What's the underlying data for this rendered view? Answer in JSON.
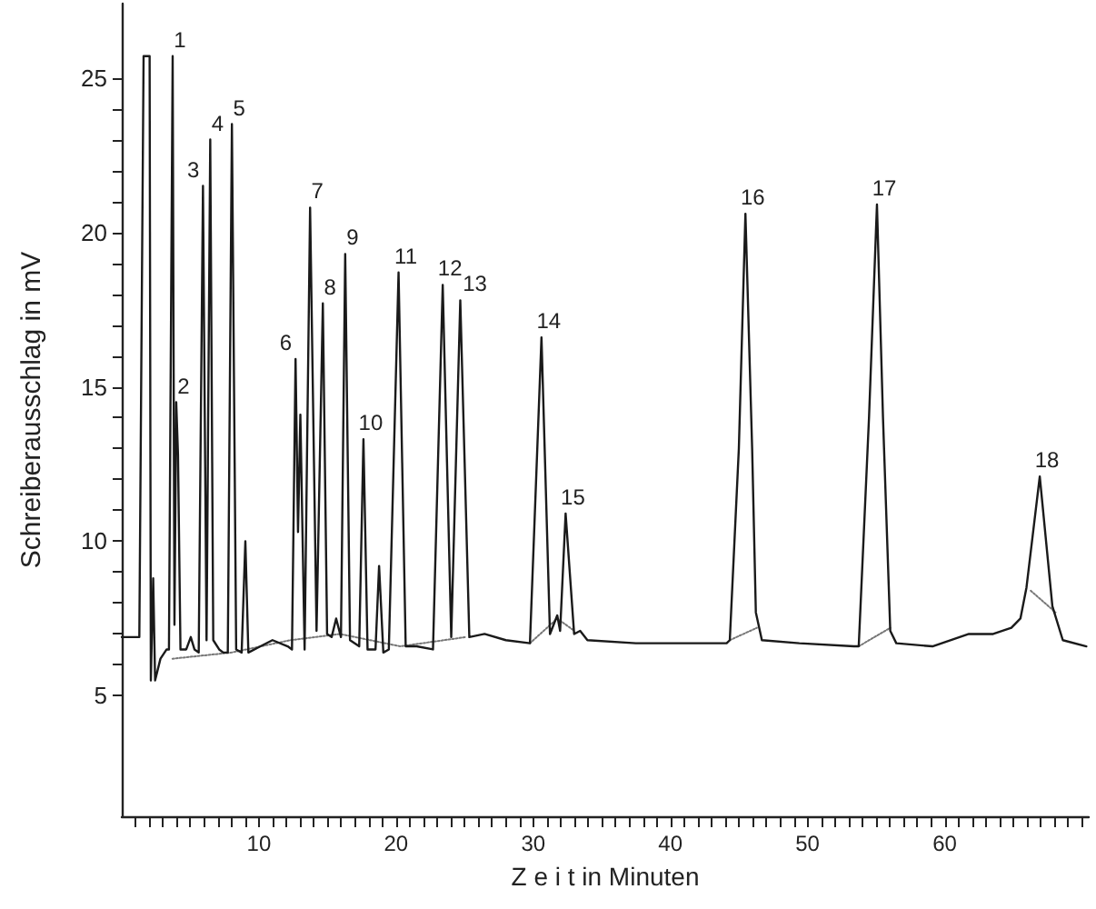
{
  "chart_data": {
    "type": "line",
    "xlabel": "Z e i t in Minuten",
    "ylabel": "Schreiberausschlag in mV",
    "xlim": [
      0,
      70.5
    ],
    "ylim": [
      1.1,
      27.4
    ],
    "xticks": [
      {
        "value": 1,
        "label": null
      },
      {
        "value": 2,
        "label": null
      },
      {
        "value": 3,
        "label": null
      },
      {
        "value": 4,
        "label": null
      },
      {
        "value": 5,
        "label": null
      },
      {
        "value": 6,
        "label": null
      },
      {
        "value": 7,
        "label": null
      },
      {
        "value": 8,
        "label": null
      },
      {
        "value": 9,
        "label": null
      },
      10,
      {
        "value": 11,
        "label": null
      },
      {
        "value": 12,
        "label": null
      },
      {
        "value": 13,
        "label": null
      },
      {
        "value": 14,
        "label": null
      },
      {
        "value": 15,
        "label": null
      },
      {
        "value": 16,
        "label": null
      },
      {
        "value": 17,
        "label": null
      },
      {
        "value": 18,
        "label": null
      },
      {
        "value": 19,
        "label": null
      },
      20,
      {
        "value": 21,
        "label": null
      },
      {
        "value": 22,
        "label": null
      },
      {
        "value": 23,
        "label": null
      },
      {
        "value": 24,
        "label": null
      },
      {
        "value": 25,
        "label": null
      },
      {
        "value": 26,
        "label": null
      },
      {
        "value": 27,
        "label": null
      },
      {
        "value": 28,
        "label": null
      },
      {
        "value": 29,
        "label": null
      },
      30,
      {
        "value": 31,
        "label": null
      },
      {
        "value": 32,
        "label": null
      },
      {
        "value": 33,
        "label": null
      },
      {
        "value": 34,
        "label": null
      },
      {
        "value": 35,
        "label": null
      },
      {
        "value": 36,
        "label": null
      },
      {
        "value": 37,
        "label": null
      },
      {
        "value": 38,
        "label": null
      },
      {
        "value": 39,
        "label": null
      },
      40,
      {
        "value": 41,
        "label": null
      },
      {
        "value": 42,
        "label": null
      },
      {
        "value": 43,
        "label": null
      },
      {
        "value": 44,
        "label": null
      },
      {
        "value": 45,
        "label": null
      },
      {
        "value": 46,
        "label": null
      },
      {
        "value": 47,
        "label": null
      },
      {
        "value": 48,
        "label": null
      },
      {
        "value": 49,
        "label": null
      },
      50,
      {
        "value": 51,
        "label": null
      },
      {
        "value": 52,
        "label": null
      },
      {
        "value": 53,
        "label": null
      },
      {
        "value": 54,
        "label": null
      },
      {
        "value": 55,
        "label": null
      },
      {
        "value": 56,
        "label": null
      },
      {
        "value": 57,
        "label": null
      },
      {
        "value": 58,
        "label": null
      },
      {
        "value": 59,
        "label": null
      },
      60,
      {
        "value": 61,
        "label": null
      },
      {
        "value": 62,
        "label": null
      },
      {
        "value": 63,
        "label": null
      },
      {
        "value": 64,
        "label": null
      },
      {
        "value": 65,
        "label": null
      },
      {
        "value": 66,
        "label": null
      },
      {
        "value": 67,
        "label": null
      },
      {
        "value": 68,
        "label": null
      },
      {
        "value": 69,
        "label": null
      },
      {
        "value": 70,
        "label": null
      }
    ],
    "yticks": [
      5,
      {
        "value": 6,
        "label": null
      },
      {
        "value": 7,
        "label": null
      },
      {
        "value": 8,
        "label": null
      },
      {
        "value": 9,
        "label": null
      },
      10,
      {
        "value": 11,
        "label": null
      },
      {
        "value": 12,
        "label": null
      },
      {
        "value": 13,
        "label": null
      },
      {
        "value": 14,
        "label": null
      },
      15,
      {
        "value": 16,
        "label": null
      },
      {
        "value": 17,
        "label": null
      },
      {
        "value": 18,
        "label": null
      },
      {
        "value": 19,
        "label": null
      },
      20,
      {
        "value": 21,
        "label": null
      },
      {
        "value": 22,
        "label": null
      },
      {
        "value": 23,
        "label": null
      },
      {
        "value": 24,
        "label": null
      },
      25
    ],
    "marker": "none",
    "line_style": "solid",
    "series": [
      {
        "color": "#1a1a1a",
        "x": [
          0,
          1.28,
          1.59,
          2.03,
          2.12,
          2.29,
          2.43,
          2.82,
          3.27,
          3.44,
          3.71,
          3.84,
          3.97,
          4.1,
          4.28,
          4.7,
          5.03,
          5.3,
          5.61,
          5.92,
          6.18,
          6.45,
          6.67,
          7.1,
          7.4,
          7.73,
          8.03,
          8.34,
          8.74,
          9.01,
          9.23,
          10.11,
          10.99,
          12.1,
          12.41,
          12.67,
          12.85,
          13.02,
          13.33,
          13.73,
          14.2,
          14.66,
          14.97,
          15.3,
          15.63,
          15.98,
          16.29,
          16.64,
          17.31,
          17.62,
          17.92,
          18.5,
          18.76,
          19.07,
          19.47,
          20.18,
          20.7,
          21.5,
          22.69,
          23.4,
          24.02,
          24.68,
          25.34,
          26.45,
          28.0,
          29.76,
          30.6,
          31.22,
          31.75,
          31.96,
          32.36,
          32.98,
          33.42,
          33.95,
          37.48,
          41.0,
          44.1,
          44.33,
          44.99,
          45.47,
          45.96,
          46.23,
          46.67,
          49.4,
          53.38,
          53.73,
          54.48,
          55.06,
          55.5,
          56.03,
          56.47,
          59.11,
          61.76,
          63.53,
          64.86,
          65.52,
          65.96,
          66.93,
          67.85,
          68.61,
          70.33
        ],
        "values": [
          6.9,
          6.9,
          25.7,
          25.7,
          5.5,
          8.8,
          5.5,
          6.2,
          6.5,
          6.5,
          25.7,
          7.3,
          14.5,
          12.8,
          6.5,
          6.5,
          6.9,
          6.5,
          6.4,
          21.5,
          6.8,
          23.0,
          6.8,
          6.5,
          6.4,
          6.4,
          23.5,
          6.5,
          6.4,
          10.0,
          6.4,
          6.6,
          6.8,
          6.6,
          6.5,
          15.9,
          10.3,
          14.1,
          6.5,
          20.8,
          7.1,
          17.7,
          7.0,
          6.9,
          7.5,
          6.9,
          19.3,
          6.8,
          6.6,
          13.3,
          6.5,
          6.5,
          9.2,
          6.4,
          6.5,
          18.7,
          6.6,
          6.6,
          6.5,
          18.3,
          6.9,
          17.8,
          6.9,
          7.0,
          6.8,
          6.7,
          16.6,
          7.0,
          7.6,
          7.1,
          10.9,
          7.0,
          7.1,
          6.8,
          6.7,
          6.7,
          6.7,
          6.8,
          13.0,
          20.6,
          13.0,
          7.7,
          6.8,
          6.7,
          6.6,
          6.6,
          14.0,
          20.9,
          14.0,
          7.1,
          6.7,
          6.6,
          7.0,
          7.0,
          7.2,
          7.5,
          8.5,
          12.1,
          7.9,
          6.8,
          6.6
        ]
      },
      {
        "color": "#777777",
        "line_style": "dotted",
        "x": [
          3.7,
          8.0,
          12.3,
          15.9,
          20.3,
          25.1,
          27.0,
          29.76,
          31.75,
          33.0,
          40.0,
          44.33,
          46.31,
          50.0,
          53.73,
          56.03,
          60.0,
          66.27,
          68.08
        ],
        "values": [
          6.2,
          6.4,
          6.8,
          7.0,
          6.6,
          6.9,
          null,
          6.7,
          7.5,
          7.1,
          null,
          6.8,
          7.2,
          null,
          6.6,
          7.2,
          null,
          8.4,
          7.7
        ]
      }
    ],
    "annotations": [
      {
        "text": "1",
        "x": 3.71,
        "y": 25.7
      },
      {
        "text": "2",
        "x": 3.97,
        "y": 14.5
      },
      {
        "text": "3",
        "x": 5.92,
        "y": 21.5
      },
      {
        "text": "4",
        "x": 6.45,
        "y": 23.0
      },
      {
        "text": "5",
        "x": 8.03,
        "y": 23.5
      },
      {
        "text": "6",
        "x": 12.67,
        "y": 15.9
      },
      {
        "text": "7",
        "x": 13.73,
        "y": 20.8
      },
      {
        "text": "8",
        "x": 14.66,
        "y": 17.7
      },
      {
        "text": "9",
        "x": 16.29,
        "y": 19.3
      },
      {
        "text": "10",
        "x": 17.62,
        "y": 13.3
      },
      {
        "text": "11",
        "x": 20.18,
        "y": 18.7
      },
      {
        "text": "12",
        "x": 23.4,
        "y": 18.3
      },
      {
        "text": "13",
        "x": 24.68,
        "y": 17.8
      },
      {
        "text": "14",
        "x": 30.6,
        "y": 16.6
      },
      {
        "text": "15",
        "x": 32.36,
        "y": 10.9
      },
      {
        "text": "16",
        "x": 45.47,
        "y": 20.6
      },
      {
        "text": "17",
        "x": 55.06,
        "y": 20.9
      },
      {
        "text": "18",
        "x": 66.93,
        "y": 12.1
      }
    ]
  }
}
